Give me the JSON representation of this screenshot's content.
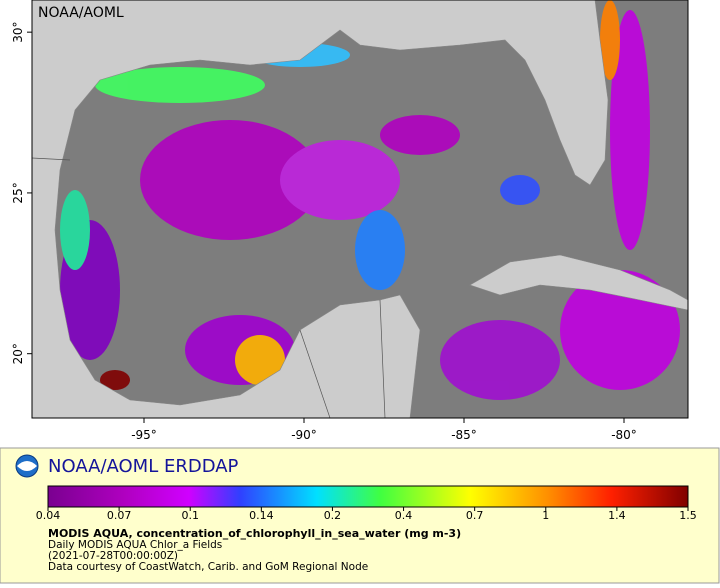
{
  "map": {
    "credit": "NOAA/AOML",
    "xlim": [
      -98.5,
      -78
    ],
    "ylim": [
      18,
      31
    ],
    "xticks": [
      {
        "value": -95,
        "label": "-95°"
      },
      {
        "value": -90,
        "label": "-90°"
      },
      {
        "value": -85,
        "label": "-85°"
      },
      {
        "value": -80,
        "label": "-80°"
      }
    ],
    "yticks": [
      {
        "value": 20,
        "label": "20°"
      },
      {
        "value": 25,
        "label": "25°"
      },
      {
        "value": 30,
        "label": "30°"
      }
    ]
  },
  "legend": {
    "title": "NOAA/AOML ERDDAP",
    "colorbar_ticks": [
      0.04,
      0.07,
      0.1,
      0.14,
      0.2,
      0.4,
      0.7,
      1,
      1.4,
      1.5
    ],
    "variable": "MODIS AQUA, concentration_of_chlorophyll_in_sea_water (mg m-3)",
    "dataset": "Daily MODIS AQUA Chlor_a Fields",
    "time": "(2021-07-28T00:00:00Z)",
    "source": "Data courtesy of CoastWatch, Carib. and GoM Regional Node"
  }
}
